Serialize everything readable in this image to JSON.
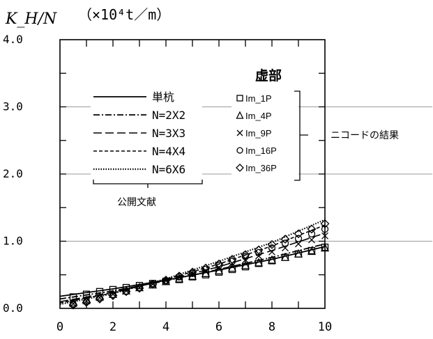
{
  "chart_data": {
    "type": "line",
    "ylabel": "K_H/N",
    "yunit": "（×10⁴t／m）",
    "ylim": [
      0,
      4
    ],
    "xlim": [
      0,
      10
    ],
    "y_ticks": [
      "0.0",
      "1.0",
      "2.0",
      "3.0",
      "4.0"
    ],
    "x_ticks": [
      "0",
      "2",
      "4",
      "6",
      "8",
      "10"
    ],
    "grid": "horizontal at 1.0, 2.0, 3.0",
    "legend_left_source": "公開文献",
    "legend_right_title": "虚部",
    "legend_right_note": "ニコードの結果",
    "series": [
      {
        "name": "単杭",
        "style": "solid",
        "x": [
          0,
          2,
          4,
          6,
          8,
          10
        ],
        "y": [
          0.18,
          0.29,
          0.42,
          0.57,
          0.73,
          0.92
        ]
      },
      {
        "name": "N=2X2",
        "style": "dashdot",
        "x": [
          0,
          2,
          4,
          6,
          8,
          10
        ],
        "y": [
          0.14,
          0.26,
          0.41,
          0.58,
          0.76,
          0.96
        ]
      },
      {
        "name": "N=3X3",
        "style": "longdash",
        "x": [
          0,
          2,
          4,
          6,
          8,
          10
        ],
        "y": [
          0.1,
          0.24,
          0.42,
          0.62,
          0.86,
          1.12
        ]
      },
      {
        "name": "N=4X4",
        "style": "dash",
        "x": [
          0,
          2,
          4,
          6,
          8,
          10
        ],
        "y": [
          0.08,
          0.23,
          0.43,
          0.66,
          0.93,
          1.24
        ]
      },
      {
        "name": "N=6X6",
        "style": "dot",
        "x": [
          0,
          2,
          4,
          6,
          8,
          10
        ],
        "y": [
          0.06,
          0.22,
          0.44,
          0.7,
          0.98,
          1.32
        ]
      },
      {
        "name": "Im_1P",
        "marker": "square",
        "x": [
          0.5,
          1,
          1.5,
          2,
          2.5,
          3,
          3.5,
          4,
          4.5,
          5,
          5.5,
          6,
          6.5,
          7,
          7.5,
          8,
          8.5,
          9,
          9.5,
          10
        ],
        "y": [
          0.17,
          0.21,
          0.25,
          0.28,
          0.31,
          0.34,
          0.37,
          0.4,
          0.43,
          0.47,
          0.5,
          0.54,
          0.58,
          0.62,
          0.67,
          0.71,
          0.76,
          0.81,
          0.86,
          0.91
        ]
      },
      {
        "name": "Im_4P",
        "marker": "triangle",
        "x": [
          0.5,
          1,
          1.5,
          2,
          2.5,
          3,
          3.5,
          4,
          4.5,
          5,
          5.5,
          6,
          6.5,
          7,
          7.5,
          8,
          8.5,
          9,
          9.5,
          10
        ],
        "y": [
          0.08,
          0.12,
          0.17,
          0.21,
          0.26,
          0.31,
          0.35,
          0.4,
          0.44,
          0.48,
          0.52,
          0.56,
          0.6,
          0.64,
          0.68,
          0.72,
          0.76,
          0.81,
          0.85,
          0.9
        ]
      },
      {
        "name": "Im_9P",
        "marker": "cross",
        "x": [
          0.5,
          1,
          1.5,
          2,
          2.5,
          3,
          3.5,
          4,
          4.5,
          5,
          5.5,
          6,
          6.5,
          7,
          7.5,
          8,
          8.5,
          9,
          9.5,
          10
        ],
        "y": [
          0.07,
          0.11,
          0.16,
          0.21,
          0.26,
          0.31,
          0.36,
          0.41,
          0.46,
          0.51,
          0.56,
          0.61,
          0.67,
          0.72,
          0.78,
          0.84,
          0.9,
          0.96,
          1.02,
          1.08
        ]
      },
      {
        "name": "Im_16P",
        "marker": "circle",
        "x": [
          0.5,
          1,
          1.5,
          2,
          2.5,
          3,
          3.5,
          4,
          4.5,
          5,
          5.5,
          6,
          6.5,
          7,
          7.5,
          8,
          8.5,
          9,
          9.5,
          10
        ],
        "y": [
          0.06,
          0.1,
          0.15,
          0.2,
          0.25,
          0.31,
          0.36,
          0.41,
          0.47,
          0.52,
          0.58,
          0.64,
          0.7,
          0.77,
          0.83,
          0.9,
          0.97,
          1.04,
          1.11,
          1.18
        ]
      },
      {
        "name": "Im_36P",
        "marker": "diamond",
        "x": [
          0.5,
          1,
          1.5,
          2,
          2.5,
          3,
          3.5,
          4,
          4.5,
          5,
          5.5,
          6,
          6.5,
          7,
          7.5,
          8,
          8.5,
          9,
          9.5,
          10
        ],
        "y": [
          0.05,
          0.09,
          0.14,
          0.19,
          0.25,
          0.3,
          0.36,
          0.42,
          0.48,
          0.54,
          0.6,
          0.66,
          0.73,
          0.8,
          0.87,
          0.95,
          1.03,
          1.11,
          1.18,
          1.26
        ]
      }
    ]
  }
}
